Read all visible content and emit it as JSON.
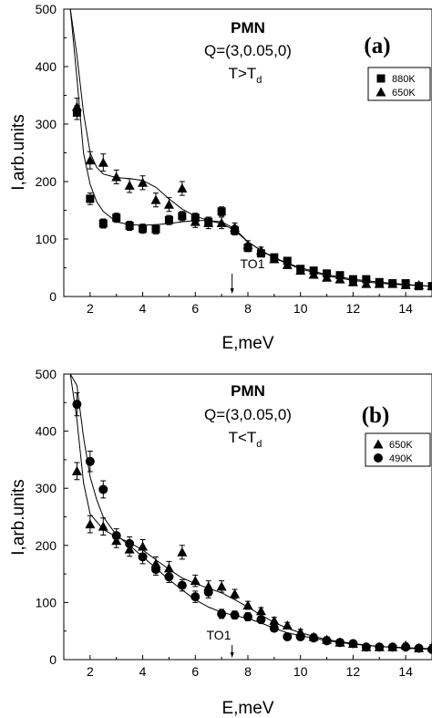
{
  "figure": {
    "background": "#ffffff",
    "ink": "#000000"
  },
  "chart_data": [
    {
      "type": "scatter",
      "panel_label": "(a)",
      "annotation": {
        "title": "PMN",
        "line1": "Q=(3,0.05,0)",
        "cond_main": "T>T",
        "cond_sub": "d"
      },
      "marker_note": {
        "text": "TO1",
        "x": 7.4
      },
      "xlabel": "E,meV",
      "ylabel": "I,arb.units",
      "xlim": [
        1,
        15
      ],
      "ylim": [
        0,
        500
      ],
      "xticks": [
        2,
        4,
        6,
        8,
        10,
        12,
        14
      ],
      "yticks": [
        0,
        100,
        200,
        300,
        400,
        500
      ],
      "legend": {
        "placement": "top-right"
      },
      "series": [
        {
          "name": "880K",
          "marker": "square",
          "points": [
            [
              1.5,
              320
            ],
            [
              2.0,
              170
            ],
            [
              2.5,
              127
            ],
            [
              3.0,
              137
            ],
            [
              3.5,
              123
            ],
            [
              4.0,
              118
            ],
            [
              4.5,
              117
            ],
            [
              5.0,
              133
            ],
            [
              5.5,
              140
            ],
            [
              6.0,
              137
            ],
            [
              6.5,
              130
            ],
            [
              7.0,
              148
            ],
            [
              7.5,
              115
            ],
            [
              8.0,
              85
            ],
            [
              8.5,
              75
            ],
            [
              9.0,
              68
            ],
            [
              9.5,
              62
            ],
            [
              10.0,
              48
            ],
            [
              10.5,
              45
            ],
            [
              11.0,
              40
            ],
            [
              11.5,
              37
            ],
            [
              12.0,
              30
            ],
            [
              12.5,
              30
            ],
            [
              13.0,
              25
            ],
            [
              13.5,
              23
            ],
            [
              14.0,
              23
            ],
            [
              14.5,
              18
            ],
            [
              15.0,
              18
            ]
          ],
          "errors": [
            12,
            10,
            8,
            8,
            8,
            8,
            8,
            8,
            8,
            8,
            8,
            8,
            8,
            7,
            6,
            6,
            6,
            5,
            5,
            5,
            5,
            4,
            4,
            4,
            4,
            4,
            4,
            4
          ],
          "fit": [
            [
              1.25,
              500
            ],
            [
              1.5,
              380
            ],
            [
              1.75,
              250
            ],
            [
              2.0,
              195
            ],
            [
              2.25,
              165
            ],
            [
              2.5,
              148
            ],
            [
              3.0,
              130
            ],
            [
              3.5,
              125
            ],
            [
              4.0,
              124
            ],
            [
              4.5,
              125
            ],
            [
              5.0,
              127
            ],
            [
              5.5,
              130
            ],
            [
              6.0,
              132
            ],
            [
              6.5,
              132
            ],
            [
              7.0,
              130
            ],
            [
              7.5,
              118
            ],
            [
              8.0,
              95
            ],
            [
              8.5,
              80
            ],
            [
              9.0,
              68
            ],
            [
              9.5,
              58
            ],
            [
              10.0,
              50
            ],
            [
              11.0,
              38
            ],
            [
              12.0,
              30
            ],
            [
              13.0,
              25
            ],
            [
              14.0,
              21
            ],
            [
              15.0,
              18
            ]
          ]
        },
        {
          "name": "650K",
          "marker": "triangle",
          "points": [
            [
              1.5,
              330
            ],
            [
              2.0,
              237
            ],
            [
              2.5,
              233
            ],
            [
              3.0,
              208
            ],
            [
              3.5,
              193
            ],
            [
              4.0,
              198
            ],
            [
              4.5,
              168
            ],
            [
              5.0,
              160
            ],
            [
              5.5,
              188
            ],
            [
              6.0,
              130
            ],
            [
              6.5,
              128
            ],
            [
              7.0,
              128
            ],
            [
              7.5,
              120
            ],
            [
              8.0,
              90
            ],
            [
              8.5,
              80
            ],
            [
              9.0,
              65
            ],
            [
              9.5,
              55
            ],
            [
              10.0,
              45
            ],
            [
              10.5,
              38
            ],
            [
              11.0,
              33
            ],
            [
              11.5,
              30
            ],
            [
              12.0,
              25
            ],
            [
              12.5,
              22
            ],
            [
              13.0,
              22
            ],
            [
              13.5,
              22
            ],
            [
              14.0,
              20
            ],
            [
              14.5,
              20
            ],
            [
              15.0,
              18
            ]
          ],
          "errors": [
            15,
            15,
            15,
            12,
            12,
            12,
            12,
            12,
            12,
            10,
            10,
            10,
            8,
            7,
            6,
            6,
            5,
            5,
            5,
            5,
            4,
            4,
            4,
            4,
            4,
            4,
            4,
            4
          ],
          "fit": [
            [
              1.25,
              500
            ],
            [
              1.5,
              420
            ],
            [
              1.75,
              320
            ],
            [
              2.0,
              250
            ],
            [
              2.25,
              225
            ],
            [
              2.5,
              213
            ],
            [
              3.0,
              207
            ],
            [
              3.5,
              205
            ],
            [
              4.0,
              202
            ],
            [
              4.5,
              190
            ],
            [
              5.0,
              170
            ],
            [
              5.5,
              152
            ],
            [
              6.0,
              140
            ],
            [
              6.5,
              132
            ],
            [
              7.0,
              127
            ],
            [
              7.5,
              115
            ],
            [
              8.0,
              95
            ],
            [
              8.5,
              80
            ],
            [
              9.0,
              67
            ],
            [
              9.5,
              57
            ],
            [
              10.0,
              48
            ],
            [
              11.0,
              36
            ],
            [
              12.0,
              28
            ],
            [
              13.0,
              23
            ],
            [
              14.0,
              20
            ],
            [
              15.0,
              18
            ]
          ]
        }
      ]
    },
    {
      "type": "scatter",
      "panel_label": "(b)",
      "annotation": {
        "title": "PMN",
        "line1": "Q=(3,0.05,0)",
        "cond_main": "T<T",
        "cond_sub": "d"
      },
      "marker_note": {
        "text": "TO1",
        "x": 7.4
      },
      "xlabel": "E,meV",
      "ylabel": "I,arb.units",
      "xlim": [
        1,
        15
      ],
      "ylim": [
        0,
        500
      ],
      "xticks": [
        2,
        4,
        6,
        8,
        10,
        12,
        14
      ],
      "yticks": [
        0,
        100,
        200,
        300,
        400,
        500
      ],
      "legend": {
        "placement": "top-right"
      },
      "series": [
        {
          "name": "650K",
          "marker": "triangle",
          "points": [
            [
              1.5,
              330
            ],
            [
              2.0,
              237
            ],
            [
              2.5,
              233
            ],
            [
              3.0,
              208
            ],
            [
              3.5,
              193
            ],
            [
              4.0,
              198
            ],
            [
              4.5,
              168
            ],
            [
              5.0,
              160
            ],
            [
              5.5,
              188
            ],
            [
              6.0,
              138
            ],
            [
              6.5,
              128
            ],
            [
              7.0,
              128
            ],
            [
              7.5,
              115
            ],
            [
              8.0,
              95
            ],
            [
              8.5,
              85
            ],
            [
              9.0,
              68
            ],
            [
              9.5,
              60
            ],
            [
              10.0,
              48
            ],
            [
              10.5,
              40
            ],
            [
              11.0,
              35
            ],
            [
              11.5,
              30
            ],
            [
              12.0,
              28
            ],
            [
              12.5,
              22
            ],
            [
              13.0,
              22
            ],
            [
              13.5,
              22
            ],
            [
              14.0,
              25
            ],
            [
              14.5,
              20
            ],
            [
              15.0,
              22
            ]
          ],
          "errors": [
            15,
            15,
            15,
            12,
            12,
            12,
            12,
            12,
            12,
            10,
            10,
            10,
            8,
            7,
            6,
            6,
            5,
            5,
            5,
            5,
            4,
            4,
            4,
            4,
            4,
            4,
            4,
            4
          ],
          "fit": [
            [
              1.25,
              500
            ],
            [
              1.5,
              420
            ],
            [
              1.75,
              310
            ],
            [
              2.0,
              255
            ],
            [
              2.5,
              228
            ],
            [
              3.0,
              215
            ],
            [
              3.5,
              205
            ],
            [
              4.0,
              192
            ],
            [
              4.5,
              175
            ],
            [
              5.0,
              158
            ],
            [
              5.5,
              143
            ],
            [
              6.0,
              133
            ],
            [
              6.5,
              125
            ],
            [
              7.0,
              117
            ],
            [
              7.5,
              105
            ],
            [
              8.0,
              92
            ],
            [
              8.5,
              78
            ],
            [
              9.0,
              65
            ],
            [
              9.5,
              55
            ],
            [
              10.0,
              47
            ],
            [
              11.0,
              35
            ],
            [
              12.0,
              28
            ],
            [
              13.0,
              23
            ],
            [
              14.0,
              21
            ],
            [
              15.0,
              19
            ]
          ]
        },
        {
          "name": "490K",
          "marker": "circle",
          "points": [
            [
              1.5,
              447
            ],
            [
              2.0,
              347
            ],
            [
              2.5,
              298
            ],
            [
              3.0,
              217
            ],
            [
              3.5,
              203
            ],
            [
              4.0,
              180
            ],
            [
              4.5,
              158
            ],
            [
              5.0,
              145
            ],
            [
              5.5,
              130
            ],
            [
              6.0,
              110
            ],
            [
              6.5,
              118
            ],
            [
              7.0,
              80
            ],
            [
              7.5,
              78
            ],
            [
              8.0,
              75
            ],
            [
              8.5,
              70
            ],
            [
              9.0,
              55
            ],
            [
              9.5,
              40
            ],
            [
              10.0,
              40
            ],
            [
              10.5,
              38
            ],
            [
              11.0,
              33
            ],
            [
              11.5,
              30
            ],
            [
              12.0,
              28
            ],
            [
              12.5,
              22
            ],
            [
              13.0,
              22
            ],
            [
              13.5,
              22
            ],
            [
              14.0,
              22
            ],
            [
              14.5,
              20
            ],
            [
              15.0,
              18
            ]
          ],
          "errors": [
            20,
            18,
            15,
            12,
            12,
            12,
            10,
            10,
            10,
            10,
            10,
            8,
            7,
            7,
            6,
            6,
            5,
            5,
            5,
            4,
            4,
            4,
            4,
            4,
            4,
            4,
            4,
            4
          ],
          "fit": [
            [
              1.25,
              500
            ],
            [
              1.5,
              480
            ],
            [
              1.75,
              390
            ],
            [
              2.0,
              320
            ],
            [
              2.25,
              280
            ],
            [
              2.5,
              250
            ],
            [
              3.0,
              218
            ],
            [
              3.5,
              200
            ],
            [
              4.0,
              180
            ],
            [
              4.5,
              160
            ],
            [
              5.0,
              140
            ],
            [
              5.5,
              122
            ],
            [
              6.0,
              105
            ],
            [
              6.5,
              92
            ],
            [
              7.0,
              83
            ],
            [
              7.5,
              77
            ],
            [
              8.0,
              72
            ],
            [
              8.5,
              64
            ],
            [
              9.0,
              55
            ],
            [
              9.5,
              47
            ],
            [
              10.0,
              42
            ],
            [
              11.0,
              33
            ],
            [
              12.0,
              27
            ],
            [
              13.0,
              23
            ],
            [
              14.0,
              20
            ],
            [
              15.0,
              18
            ]
          ]
        }
      ]
    }
  ]
}
